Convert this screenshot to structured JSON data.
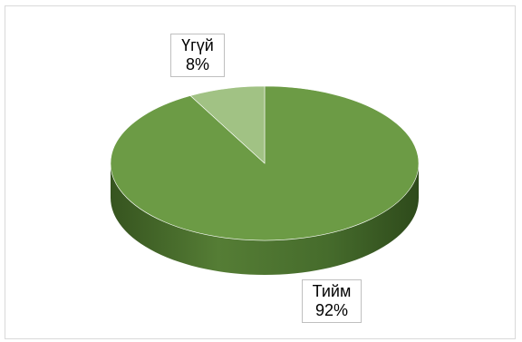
{
  "chart_data": {
    "type": "pie",
    "variant": "3d",
    "categories": [
      "Тийм",
      "Үгүй"
    ],
    "values": [
      92,
      8
    ],
    "value_format": "percent",
    "colors": [
      "#6c9b45",
      "#a1c284"
    ],
    "side_colors": [
      "#3f6129",
      "#5c7f44"
    ],
    "legend": "none",
    "labels": [
      {
        "name": "Тийм",
        "value": "92%"
      },
      {
        "name": "Үгүй",
        "value": "8%"
      }
    ]
  }
}
